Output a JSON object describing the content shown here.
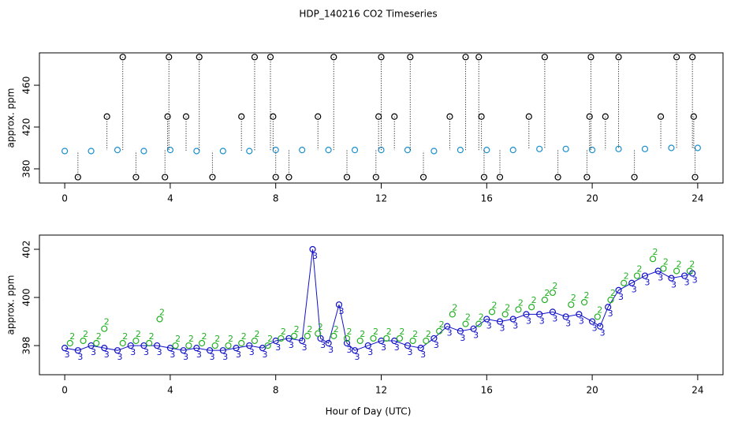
{
  "chart_data": [
    {
      "type": "scatter",
      "title": "HDP_140216  CO2 Timeseries",
      "ylabel": "approx. ppm",
      "xlim": [
        -0.96,
        24.96
      ],
      "xticks": [
        0,
        4,
        8,
        12,
        16,
        20,
        24
      ],
      "ylim": [
        366.4,
        491
      ],
      "yticks": [
        380,
        420,
        460
      ],
      "series": [
        {
          "color": "#1a8fd0",
          "x": [
            0,
            1,
            2,
            3,
            4,
            5,
            6,
            7,
            8,
            9,
            10,
            11,
            12,
            13,
            14,
            15,
            16,
            17,
            18,
            19,
            20,
            21,
            22,
            23,
            24
          ],
          "values": [
            397,
            397,
            398,
            397,
            398,
            397,
            397,
            397,
            398,
            398,
            398,
            398,
            398,
            398,
            397,
            398,
            398,
            398,
            399,
            399,
            398,
            399,
            399,
            400,
            400
          ]
        },
        {
          "color": "#000000",
          "stems": true,
          "x": [
            0.5,
            1.6,
            2.2,
            2.7,
            3.8,
            3.9,
            3.95,
            4.6,
            5.1,
            5.6,
            6.7,
            7.2,
            7.8,
            7.9,
            8.0,
            8.5,
            9.6,
            10.2,
            10.7,
            11.8,
            11.9,
            12.0,
            12.5,
            13.1,
            13.6,
            14.6,
            15.2,
            15.7,
            15.8,
            15.9,
            16.5,
            17.6,
            18.2,
            18.7,
            19.8,
            19.9,
            19.95,
            20.5,
            21.0,
            21.6,
            22.6,
            23.2,
            23.8,
            23.85,
            23.9
          ],
          "values": [
            372,
            430,
            487,
            372,
            372,
            430,
            487,
            430,
            487,
            372,
            430,
            487,
            487,
            430,
            372,
            372,
            430,
            487,
            372,
            372,
            430,
            487,
            430,
            487,
            372,
            430,
            487,
            487,
            430,
            372,
            372,
            430,
            487,
            372,
            372,
            430,
            487,
            430,
            487,
            372,
            430,
            487,
            487,
            430,
            372
          ]
        }
      ]
    },
    {
      "type": "scatter",
      "ylabel": "approx. ppm",
      "xlabel": "Hour of Day (UTC)",
      "xlim": [
        -0.96,
        24.96
      ],
      "xticks": [
        0,
        4,
        8,
        12,
        16,
        20,
        24
      ],
      "ylim": [
        396.79,
        402.59
      ],
      "yticks": [
        398,
        400,
        402
      ],
      "series": [
        {
          "color": "#1010c8",
          "marker": "3",
          "lines": true,
          "x": [
            0,
            0.5,
            1,
            1.5,
            2,
            2.5,
            3,
            3.5,
            4,
            4.5,
            5,
            5.5,
            6,
            6.5,
            7,
            7.5,
            8,
            8.5,
            9,
            9.4,
            9.7,
            10,
            10.4,
            10.7,
            11,
            11.5,
            12,
            12.5,
            13,
            13.5,
            14,
            14.5,
            15,
            15.5,
            16,
            16.5,
            17,
            17.5,
            18,
            18.5,
            19,
            19.5,
            20,
            20.3,
            20.6,
            21,
            21.5,
            22,
            22.5,
            23,
            23.5,
            23.8
          ],
          "values": [
            397.9,
            397.8,
            398.0,
            397.9,
            397.8,
            398.0,
            398.0,
            398.0,
            397.9,
            397.8,
            397.9,
            397.8,
            397.8,
            397.9,
            398.0,
            397.9,
            398.2,
            398.3,
            398.2,
            402.0,
            398.3,
            398.1,
            399.7,
            398.1,
            397.8,
            398.0,
            398.2,
            398.2,
            398.0,
            397.9,
            398.3,
            398.8,
            398.6,
            398.7,
            399.1,
            399.0,
            399.1,
            399.3,
            399.3,
            399.4,
            399.2,
            399.3,
            399.0,
            398.8,
            399.6,
            400.3,
            400.6,
            400.9,
            401.1,
            400.8,
            400.9,
            401.0
          ]
        },
        {
          "color": "#22b022",
          "marker": "2",
          "x": [
            0.2,
            0.7,
            1.2,
            1.5,
            2.2,
            2.7,
            3.2,
            3.6,
            4.2,
            4.7,
            5.2,
            5.7,
            6.2,
            6.7,
            7.2,
            7.7,
            8.2,
            8.7,
            9.2,
            9.6,
            10.2,
            10.7,
            11.2,
            11.7,
            12.2,
            12.7,
            13.2,
            13.7,
            14.2,
            14.7,
            15.2,
            15.7,
            16.2,
            16.7,
            17.2,
            17.7,
            18.2,
            18.5,
            19.2,
            19.7,
            20.2,
            20.7,
            21.2,
            21.7,
            22.3,
            22.7,
            23.2,
            23.7
          ],
          "values": [
            398.1,
            398.2,
            398.1,
            398.7,
            398.1,
            398.2,
            398.1,
            399.1,
            398.0,
            398.0,
            398.1,
            398.0,
            398.0,
            398.1,
            398.2,
            398.0,
            398.3,
            398.4,
            398.4,
            398.5,
            398.4,
            398.3,
            398.2,
            398.3,
            398.3,
            398.3,
            398.2,
            398.2,
            398.6,
            399.3,
            398.9,
            398.9,
            399.4,
            399.3,
            399.5,
            399.6,
            399.9,
            400.2,
            399.7,
            399.8,
            399.2,
            399.9,
            400.6,
            400.9,
            401.6,
            401.2,
            401.1,
            401.1
          ]
        }
      ]
    }
  ]
}
